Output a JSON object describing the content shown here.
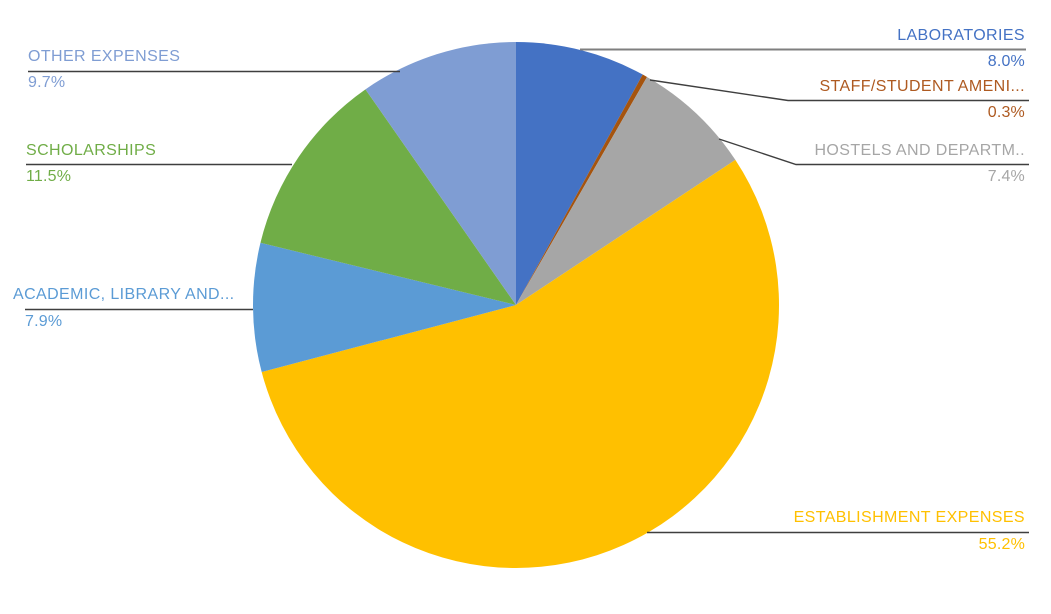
{
  "figure": {
    "background": "#FFFFFF"
  },
  "chart_data": {
    "type": "pie",
    "title": "",
    "unit": "percent",
    "total": 100.0,
    "start_angle_deg": 0,
    "direction": "clockwise",
    "legend": "none",
    "grid": "off",
    "label_style": "outside callout labels with leader lines; category name above underline, percentage below",
    "slices": [
      {
        "label": "LABORATORIES",
        "value": 8.0,
        "pct_label": "8.0%",
        "color": "#4472C4"
      },
      {
        "label": "STAFF/STUDENT AMENI...",
        "value": 0.3,
        "pct_label": "0.3%",
        "color": "#A5540F",
        "text_color": "#AE5A21"
      },
      {
        "label": "HOSTELS AND DEPARTM..",
        "value": 7.4,
        "pct_label": "7.4%",
        "color": "#A6A6A6"
      },
      {
        "label": "ESTABLISHMENT EXPENSES",
        "value": 55.2,
        "pct_label": "55.2%",
        "color": "#FFC000"
      },
      {
        "label": "ACADEMIC, LIBRARY AND...",
        "value": 7.9,
        "pct_label": "7.9%",
        "color": "#5B9BD5"
      },
      {
        "label": "SCHOLARSHIPS",
        "value": 11.5,
        "pct_label": "11.5%",
        "color": "#70AD47"
      },
      {
        "label": "OTHER EXPENSES",
        "value": 9.7,
        "pct_label": "9.7%",
        "color": "#7F9DD3"
      }
    ]
  }
}
